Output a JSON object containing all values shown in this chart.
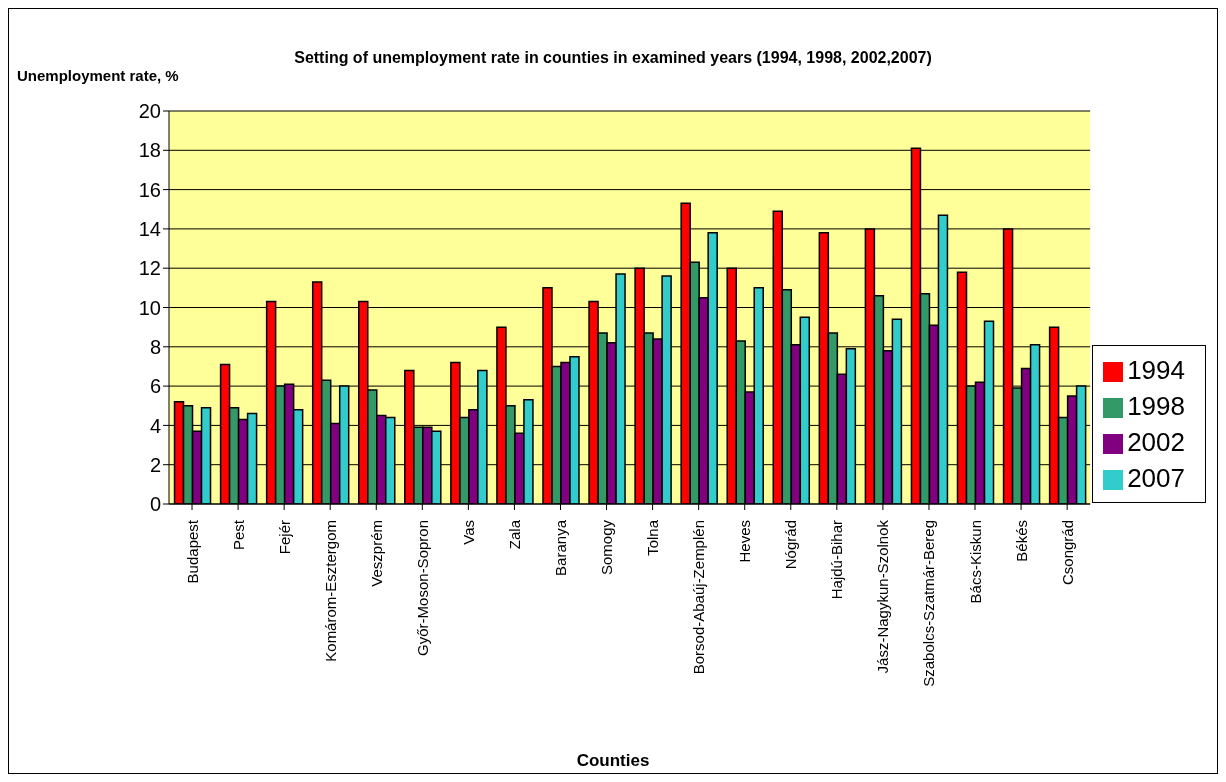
{
  "chart_data": {
    "type": "bar",
    "title": "Setting of unemployment rate in counties in examined years (1994, 1998, 2002,2007)",
    "xlabel": "Counties",
    "ylabel": "Unemployment rate, %",
    "categories": [
      "Budapest",
      "Pest",
      "Fejér",
      "Komárom-Esztergom",
      "Veszprém",
      "Győr-Moson-Sopron",
      "Vas",
      "Zala",
      "Baranya",
      "Somogy",
      "Tolna",
      "Borsod-Abaúj-Zemplén",
      "Heves",
      "Nógrád",
      "Hajdú-Bihar",
      "Jász-Nagykun-Szolnok",
      "Szabolcs-Szatmár-Bereg",
      "Bács-Kiskun",
      "Békés",
      "Csongrád"
    ],
    "series": [
      {
        "name": "1994",
        "color": "#ff0000",
        "values": [
          5.2,
          7.1,
          10.3,
          11.3,
          10.3,
          6.8,
          7.2,
          9.0,
          11.0,
          10.3,
          12.0,
          15.3,
          12.0,
          14.9,
          13.8,
          14.0,
          18.1,
          11.8,
          14.0,
          9.0
        ]
      },
      {
        "name": "1998",
        "color": "#339966",
        "values": [
          5.0,
          4.9,
          6.0,
          6.3,
          5.8,
          3.9,
          4.4,
          5.0,
          7.0,
          8.7,
          8.7,
          12.3,
          8.3,
          10.9,
          8.7,
          10.6,
          10.7,
          6.0,
          5.9,
          4.4
        ]
      },
      {
        "name": "2002",
        "color": "#800080",
        "values": [
          3.7,
          4.3,
          6.1,
          4.1,
          4.5,
          3.9,
          4.8,
          3.6,
          7.2,
          8.2,
          8.4,
          10.5,
          5.7,
          8.1,
          6.6,
          7.8,
          9.1,
          6.2,
          6.9,
          5.5
        ]
      },
      {
        "name": "2007",
        "color": "#33cccc",
        "values": [
          4.9,
          4.6,
          4.8,
          6.0,
          4.4,
          3.7,
          6.8,
          5.3,
          7.5,
          11.7,
          11.6,
          13.8,
          11.0,
          9.5,
          7.9,
          9.4,
          14.7,
          9.3,
          8.1,
          6.0
        ]
      }
    ],
    "ylim": [
      0,
      20
    ],
    "yticks": [
      0,
      2,
      4,
      6,
      8,
      10,
      12,
      14,
      16,
      18,
      20
    ],
    "grid": "y",
    "legend": "right"
  }
}
